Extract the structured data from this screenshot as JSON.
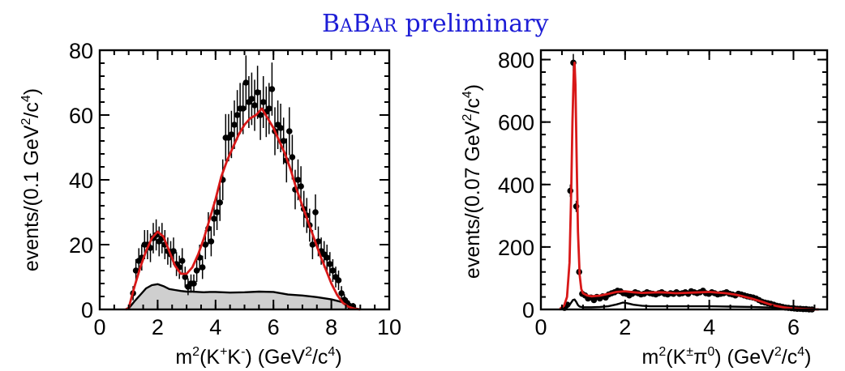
{
  "banner": {
    "letter_B1": "B",
    "letter_A1": "A",
    "letter_B2": "B",
    "letter_AR": "AR",
    "word": "preliminary"
  },
  "chart_data": [
    {
      "type": "scatter",
      "title": "",
      "xlabel": {
        "prefix": "m",
        "sup1": "2",
        "p1": "(K",
        "sup2": "+",
        "p2": "K",
        "sup3": "-",
        "p3": ")  (GeV",
        "sup4": "2",
        "p4": "/c",
        "sup5": "4",
        "p5": ")"
      },
      "ylabel": {
        "prefix": "events/(0.1 GeV",
        "sup1": "2",
        "mid": "/c",
        "sup2": "4",
        "suffix": ")"
      },
      "xlim": [
        0,
        10
      ],
      "ylim": [
        0,
        80
      ],
      "xticks": [
        0,
        2,
        4,
        6,
        8,
        10
      ],
      "yticks": [
        0,
        20,
        40,
        60,
        80
      ],
      "xtick_labels": [
        "0",
        "2",
        "4",
        "6",
        "8",
        "10"
      ],
      "ytick_labels": [
        "0",
        "20",
        "40",
        "60",
        "80"
      ],
      "series": [
        {
          "kind": "data-points",
          "x": [
            1.15,
            1.25,
            1.35,
            1.45,
            1.55,
            1.65,
            1.75,
            1.85,
            1.95,
            2.05,
            2.15,
            2.25,
            2.35,
            2.45,
            2.55,
            2.65,
            2.75,
            2.85,
            2.95,
            3.05,
            3.15,
            3.25,
            3.35,
            3.45,
            3.55,
            3.65,
            3.75,
            3.85,
            3.95,
            4.05,
            4.15,
            4.25,
            4.35,
            4.45,
            4.55,
            4.65,
            4.75,
            4.85,
            4.95,
            5.05,
            5.15,
            5.25,
            5.35,
            5.45,
            5.55,
            5.65,
            5.75,
            5.85,
            5.95,
            6.05,
            6.15,
            6.25,
            6.35,
            6.45,
            6.55,
            6.65,
            6.75,
            6.85,
            6.95,
            7.05,
            7.15,
            7.25,
            7.35,
            7.45,
            7.55,
            7.65,
            7.75,
            7.85,
            7.95,
            8.05,
            8.15,
            8.25,
            8.35,
            8.45,
            8.55,
            8.65,
            8.75
          ],
          "y": [
            5,
            12,
            15,
            16,
            20,
            20,
            19,
            22,
            23,
            21,
            22,
            20,
            18,
            17,
            18,
            14,
            13,
            15,
            10,
            7,
            8,
            8,
            12,
            16,
            13,
            20,
            25,
            21,
            28,
            30,
            33,
            40,
            53,
            53,
            54,
            57,
            60,
            62,
            62,
            70,
            64,
            65,
            63,
            67,
            60,
            64,
            61,
            62,
            68,
            55,
            57,
            56,
            52,
            46,
            55,
            47,
            37,
            40,
            38,
            31,
            29,
            26,
            20,
            30,
            21,
            18,
            17,
            16,
            14,
            12,
            10,
            9,
            5,
            3,
            2,
            1,
            1
          ],
          "err": [
            2.2,
            3.5,
            3.9,
            4,
            4.5,
            4.5,
            4.4,
            4.7,
            4.8,
            4.6,
            4.7,
            4.5,
            4.2,
            4.1,
            4.2,
            3.7,
            3.6,
            3.9,
            3.2,
            2.6,
            2.8,
            2.8,
            3.5,
            4,
            3.6,
            4.5,
            5,
            4.6,
            5.3,
            5.5,
            5.7,
            6.3,
            7.3,
            7.3,
            7.3,
            7.5,
            7.7,
            7.9,
            7.9,
            8.4,
            8,
            8.1,
            7.9,
            8.2,
            7.7,
            8,
            7.8,
            7.9,
            8.2,
            7.4,
            7.5,
            7.5,
            7.2,
            6.8,
            7.4,
            6.9,
            6.1,
            6.3,
            6.2,
            5.6,
            5.4,
            5.1,
            4.5,
            5.5,
            4.6,
            4.2,
            4.1,
            4,
            3.7,
            3.5,
            3.2,
            3,
            2.2,
            1.7,
            1.4,
            1,
            1
          ]
        },
        {
          "kind": "fit-curve",
          "color": "#d81818",
          "x": [
            0.9,
            1.0,
            1.2,
            1.4,
            1.6,
            1.8,
            2.0,
            2.2,
            2.4,
            2.6,
            2.8,
            3.0,
            3.2,
            3.4,
            3.6,
            3.8,
            4.0,
            4.2,
            4.4,
            4.6,
            4.8,
            5.0,
            5.2,
            5.4,
            5.6,
            5.8,
            6.0,
            6.2,
            6.4,
            6.6,
            6.8,
            7.0,
            7.2,
            7.4,
            7.6,
            7.8,
            8.0,
            8.2,
            8.4,
            8.6,
            8.8,
            9.0
          ],
          "y": [
            0,
            0.5,
            7,
            13,
            18,
            22,
            24,
            22.5,
            18,
            13.5,
            11,
            11,
            13,
            17,
            22,
            28,
            34,
            41,
            46,
            50,
            54,
            57,
            59,
            60,
            62,
            59,
            56,
            52,
            48,
            43,
            37,
            32,
            27,
            22,
            17,
            12.5,
            8,
            4.5,
            2,
            0.8,
            0.2,
            0
          ]
        },
        {
          "kind": "background-filled",
          "color": "#cfcfcf",
          "x": [
            0.9,
            1.0,
            1.2,
            1.4,
            1.6,
            1.8,
            2.0,
            2.2,
            2.4,
            2.6,
            2.8,
            3.0,
            3.2,
            3.4,
            3.6,
            3.8,
            4.0,
            4.5,
            5.0,
            5.5,
            6.0,
            6.5,
            7.0,
            7.5,
            8.0,
            8.4,
            8.8,
            9.0
          ],
          "y": [
            0,
            0.3,
            2.5,
            4.5,
            6.5,
            7.5,
            7.8,
            7.2,
            6.3,
            6.0,
            5.7,
            5.5,
            5.5,
            5.4,
            5.3,
            5.4,
            5.4,
            5.2,
            5.3,
            5.5,
            5.4,
            4.6,
            4.3,
            3.8,
            3.1,
            2.2,
            0.4,
            0
          ]
        }
      ]
    },
    {
      "type": "scatter",
      "title": "",
      "xlabel": {
        "prefix": "m",
        "sup1": "2",
        "p1": "(K",
        "sup2": "±",
        "p2": "π",
        "sup3": "0",
        "p3": ")  (GeV",
        "sup4": "2",
        "p4": "/c",
        "sup5": "4",
        "p5": ")"
      },
      "ylabel": {
        "prefix": "events/(0.07 GeV",
        "sup1": "2",
        "mid": "/c",
        "sup2": "4",
        "suffix": ")"
      },
      "xlim": [
        0,
        6.8
      ],
      "ylim": [
        0,
        830
      ],
      "xticks": [
        0,
        2,
        4,
        6
      ],
      "yticks": [
        0,
        200,
        400,
        600,
        800
      ],
      "xtick_labels": [
        "0",
        "2",
        "4",
        "6"
      ],
      "ytick_labels": [
        "0",
        "200",
        "400",
        "600",
        "800"
      ],
      "series": [
        {
          "kind": "data-points",
          "x": [
            0.56,
            0.63,
            0.7,
            0.77,
            0.84,
            0.91,
            0.98,
            1.05,
            1.12,
            1.19,
            1.26,
            1.33,
            1.4,
            1.47,
            1.54,
            1.61,
            1.68,
            1.75,
            1.82,
            1.89,
            1.96,
            2.03,
            2.1,
            2.17,
            2.24,
            2.31,
            2.38,
            2.45,
            2.52,
            2.59,
            2.66,
            2.73,
            2.8,
            2.87,
            2.94,
            3.01,
            3.08,
            3.15,
            3.22,
            3.29,
            3.36,
            3.43,
            3.5,
            3.57,
            3.64,
            3.71,
            3.78,
            3.85,
            3.92,
            3.99,
            4.06,
            4.13,
            4.2,
            4.27,
            4.34,
            4.41,
            4.48,
            4.55,
            4.62,
            4.69,
            4.76,
            4.83,
            4.9,
            4.97,
            5.04,
            5.11,
            5.18,
            5.25,
            5.32,
            5.39,
            5.46,
            5.53,
            5.6,
            5.67,
            5.74,
            5.81,
            5.88,
            5.95,
            6.02,
            6.09,
            6.16,
            6.23,
            6.3,
            6.37,
            6.44
          ],
          "y": [
            5,
            15,
            380,
            790,
            330,
            120,
            50,
            45,
            35,
            38,
            30,
            40,
            35,
            42,
            38,
            48,
            52,
            55,
            60,
            58,
            52,
            50,
            45,
            50,
            55,
            52,
            48,
            50,
            55,
            52,
            50,
            48,
            52,
            55,
            50,
            48,
            52,
            50,
            55,
            50,
            52,
            55,
            50,
            58,
            55,
            52,
            55,
            60,
            52,
            50,
            55,
            52,
            48,
            50,
            52,
            55,
            50,
            48,
            45,
            50,
            48,
            45,
            42,
            40,
            38,
            35,
            30,
            25,
            22,
            20,
            18,
            15,
            12,
            10,
            8,
            6,
            5,
            4,
            3,
            2,
            2,
            1,
            1,
            0,
            0
          ],
          "err": [
            3,
            5,
            20,
            28,
            18,
            11,
            7,
            7,
            6,
            6,
            5.5,
            6.3,
            6,
            6.5,
            6.2,
            7,
            7.2,
            7.4,
            7.7,
            7.6,
            7.2,
            7.1,
            6.7,
            7.1,
            7.4,
            7.2,
            6.9,
            7.1,
            7.4,
            7.2,
            7.1,
            6.9,
            7.2,
            7.4,
            7.1,
            6.9,
            7.2,
            7.1,
            7.4,
            7.1,
            7.2,
            7.4,
            7.1,
            7.6,
            7.4,
            7.2,
            7.4,
            7.7,
            7.2,
            7.1,
            7.4,
            7.2,
            6.9,
            7.1,
            7.2,
            7.4,
            7.1,
            6.9,
            6.7,
            7.1,
            6.9,
            6.7,
            6.5,
            6.3,
            6.2,
            5.9,
            5.5,
            5,
            4.7,
            4.5,
            4.2,
            3.9,
            3.5,
            3.2,
            2.8,
            2.5,
            2.2,
            2,
            1.7,
            1.4,
            1.4,
            1,
            1,
            0.5,
            0.5
          ]
        },
        {
          "kind": "fit-curve",
          "color": "#d81818",
          "x": [
            0.45,
            0.55,
            0.62,
            0.68,
            0.72,
            0.75,
            0.78,
            0.8,
            0.82,
            0.85,
            0.88,
            0.92,
            0.96,
            1.0,
            1.1,
            1.2,
            1.4,
            1.6,
            1.8,
            2.0,
            2.2,
            2.4,
            2.6,
            2.8,
            3.0,
            3.2,
            3.4,
            3.6,
            3.8,
            4.0,
            4.2,
            4.4,
            4.6,
            4.8,
            5.0,
            5.2,
            5.4,
            5.6,
            5.8,
            6.0,
            6.2,
            6.4,
            6.6
          ],
          "y": [
            2,
            12,
            40,
            150,
            380,
            600,
            760,
            790,
            720,
            480,
            250,
            110,
            65,
            52,
            45,
            42,
            44,
            50,
            56,
            58,
            55,
            53,
            54,
            55,
            54,
            52,
            53,
            54,
            55,
            56,
            54,
            52,
            48,
            42,
            35,
            27,
            18,
            11,
            6,
            3,
            1.5,
            0.5,
            0
          ]
        },
        {
          "kind": "background-line",
          "color": "#000000",
          "x": [
            0.45,
            0.55,
            0.62,
            0.68,
            0.72,
            0.76,
            0.8,
            0.84,
            0.88,
            0.92,
            1.0,
            1.2,
            1.4,
            1.6,
            1.8,
            1.95,
            2.05,
            2.2,
            2.4,
            2.6,
            3.0,
            3.5,
            4.0,
            4.5,
            5.0,
            5.5,
            6.0,
            6.4,
            6.6
          ],
          "y": [
            0,
            2,
            6,
            14,
            22,
            30,
            32,
            24,
            14,
            9,
            7,
            7,
            8,
            10,
            16,
            22,
            20,
            15,
            12,
            10,
            10,
            10,
            10,
            9,
            8,
            6,
            3,
            1,
            0
          ]
        }
      ]
    }
  ]
}
